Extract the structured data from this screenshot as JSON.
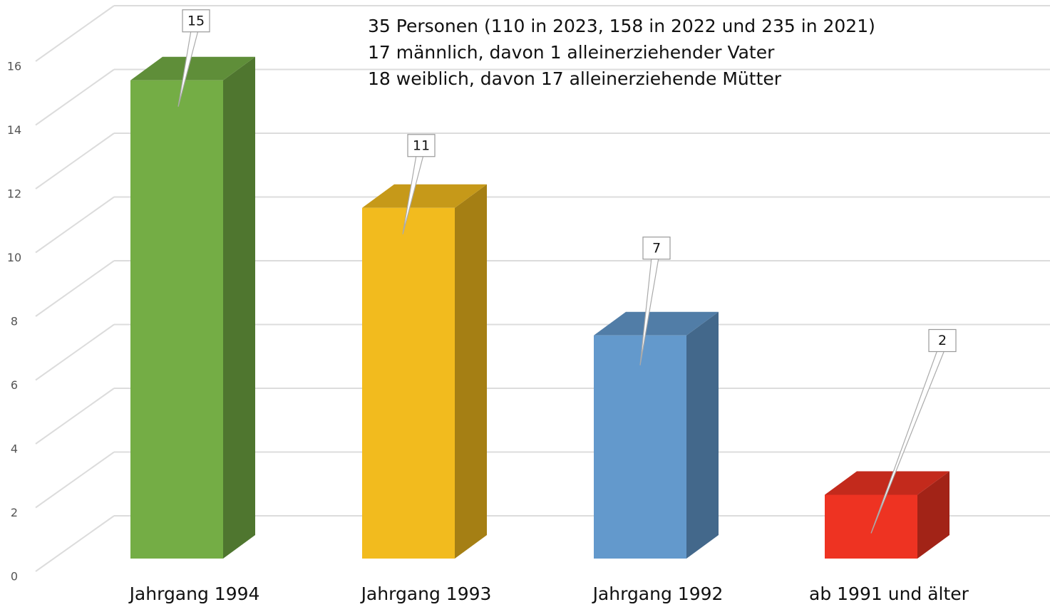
{
  "chart_data": {
    "type": "bar3d",
    "annotation": [
      "35 Personen (110 in 2023, 158 in 2022 und 235 in 2021)",
      "17 männlich, davon 1 alleinerziehender Vater",
      "18 weiblich, davon 17 alleinerziehende Mütter"
    ],
    "categories": [
      "Jahrgang 1994",
      "Jahrgang 1993",
      "Jahrgang 1992",
      "ab 1991 und älter"
    ],
    "values": [
      15,
      11,
      7,
      2
    ],
    "colors": [
      "#74ad45",
      "#f2bb1e",
      "#6399cc",
      "#ee3322"
    ],
    "ylim": [
      0,
      16
    ],
    "yticks": [
      0,
      2,
      4,
      6,
      8,
      10,
      12,
      14,
      16
    ],
    "grid": true
  }
}
